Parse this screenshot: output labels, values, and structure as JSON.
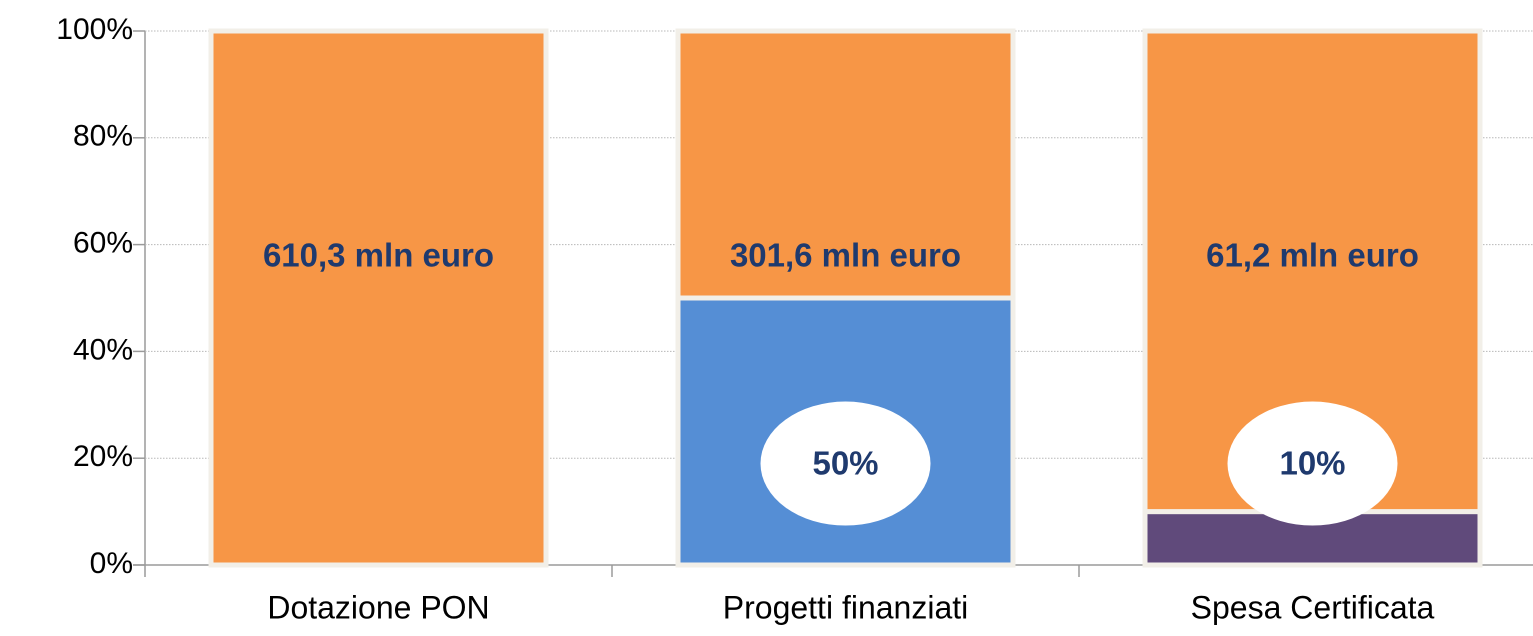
{
  "chart_data": {
    "type": "stacked_bar",
    "categories": [
      "Dotazione PON",
      "Progetti finanziati",
      "Spesa Certificata"
    ],
    "series": [
      {
        "colors": [
          "#558ed5",
          "#558ed5",
          "#604a7b"
        ],
        "values": [
          null,
          50,
          10
        ],
        "value_labels": [
          null,
          "50%",
          "10%"
        ]
      },
      {
        "color": "#f79646",
        "values": [
          100,
          50,
          90
        ]
      }
    ],
    "annotations": [
      "610,3 mln euro",
      "301,6 mln euro",
      "61,2 mln euro"
    ],
    "ylim": [
      0,
      100
    ],
    "yticks": [
      {
        "value": 0,
        "label": "0%"
      },
      {
        "value": 20,
        "label": "20%"
      },
      {
        "value": 40,
        "label": "40%"
      },
      {
        "value": 60,
        "label": "60%"
      },
      {
        "value": 80,
        "label": "80%"
      },
      {
        "value": 100,
        "label": "100%"
      }
    ],
    "grid": true
  }
}
